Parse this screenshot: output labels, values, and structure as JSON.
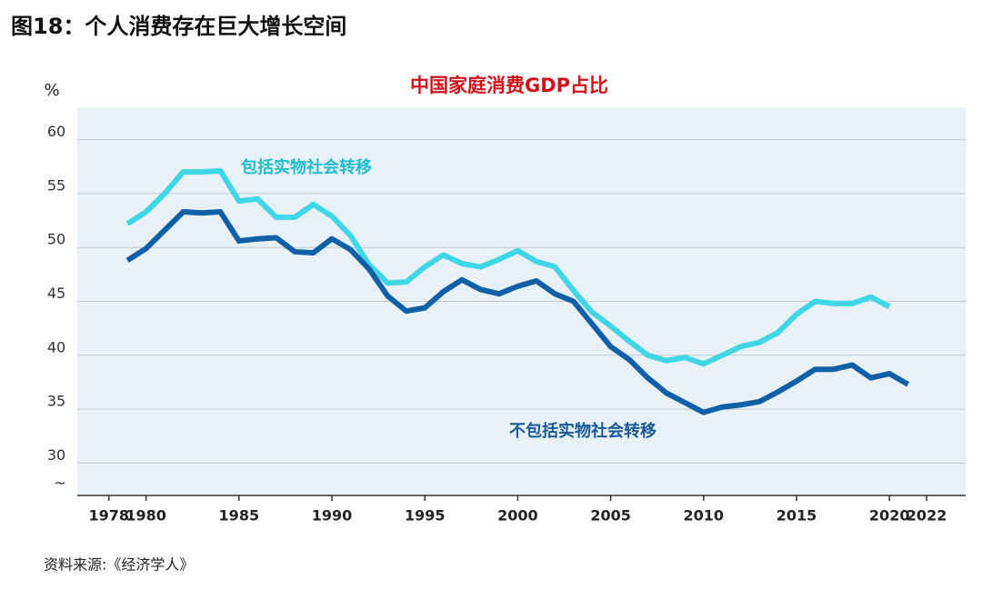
{
  "chart_data": {
    "type": "line",
    "figure_title": "图18：个人消费存在巨大增长空间",
    "title": "中国家庭消费GDP占比",
    "y_unit": "%",
    "axis_break": "~",
    "source": "资料来源:《经济学人》",
    "xlim": [
      1976.3,
      2024.1
    ],
    "xticks": [
      1978,
      1980,
      1985,
      1990,
      1995,
      2000,
      2005,
      2010,
      2015,
      2020,
      2022
    ],
    "ylim": [
      27,
      63
    ],
    "yticks": [
      30,
      35,
      40,
      45,
      50,
      55,
      60
    ],
    "grid": true,
    "series": [
      {
        "name": "包括实物社会转移",
        "color": "#3fd6e6",
        "x": [
          1979,
          1980,
          1981,
          1982,
          1983,
          1984,
          1985,
          1986,
          1987,
          1988,
          1989,
          1990,
          1991,
          1992,
          1993,
          1994,
          1995,
          1996,
          1997,
          1998,
          1999,
          2000,
          2001,
          2002,
          2003,
          2004,
          2005,
          2006,
          2007,
          2008,
          2009,
          2010,
          2011,
          2012,
          2013,
          2014,
          2015,
          2016,
          2017,
          2018,
          2019,
          2020
        ],
        "values": [
          52.2,
          53.3,
          55,
          57,
          57,
          57.1,
          54.3,
          54.5,
          52.8,
          52.8,
          54,
          52.9,
          51.1,
          48.4,
          46.7,
          46.8,
          48.2,
          49.3,
          48.5,
          48.2,
          48.9,
          49.7,
          48.7,
          48.2,
          46,
          44,
          42.7,
          41.3,
          40,
          39.5,
          39.8,
          39.2,
          40,
          40.8,
          41.2,
          42.1,
          43.8,
          45,
          44.8,
          44.8,
          45.4,
          44.5
        ]
      },
      {
        "name": "不包括实物社会转移",
        "color": "#1060a8",
        "x": [
          1979,
          1980,
          1981,
          1982,
          1983,
          1984,
          1985,
          1986,
          1987,
          1988,
          1989,
          1990,
          1991,
          1992,
          1993,
          1994,
          1995,
          1996,
          1997,
          1998,
          1999,
          2000,
          2001,
          2002,
          2003,
          2004,
          2005,
          2006,
          2007,
          2008,
          2009,
          2010,
          2011,
          2012,
          2013,
          2014,
          2015,
          2016,
          2017,
          2018,
          2019,
          2020,
          2021
        ],
        "values": [
          48.8,
          49.9,
          51.6,
          53.3,
          53.2,
          53.3,
          50.6,
          50.8,
          50.9,
          49.6,
          49.5,
          50.8,
          49.8,
          48,
          45.5,
          44.1,
          44.4,
          45.9,
          47,
          46.1,
          45.7,
          46.4,
          46.9,
          45.7,
          45,
          42.9,
          40.8,
          39.6,
          37.9,
          36.5,
          35.6,
          34.7,
          35.2,
          35.4,
          35.7,
          36.6,
          37.6,
          38.7,
          38.7,
          39.1,
          37.9,
          38.3,
          37.3
        ]
      }
    ]
  }
}
